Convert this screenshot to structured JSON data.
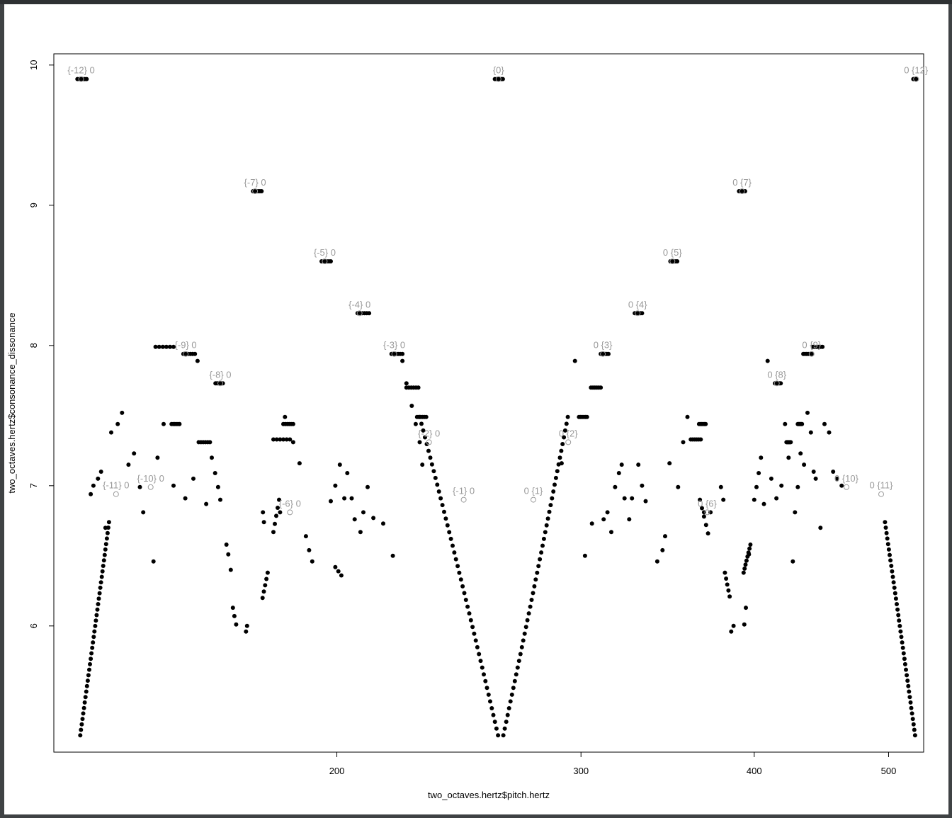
{
  "chart_data": {
    "type": "scatter",
    "xlabel": "two_octaves.hertz$pitch.hertz",
    "ylabel": "two_octaves.hertz$consonance_dissonance",
    "x_scale": "log",
    "xlim": [
      125,
      530
    ],
    "ylim": [
      5.1,
      10.08
    ],
    "x_ticks": [
      200,
      300,
      400,
      500
    ],
    "x_tick_labels": [
      "200",
      "300",
      "400",
      "500"
    ],
    "y_ticks": [
      6,
      7,
      8,
      9,
      10
    ],
    "y_tick_labels": [
      "6",
      "7",
      "8",
      "9",
      "10"
    ],
    "grid": false,
    "legend": "none",
    "point_color": "#000000",
    "label_color": "#9a9a9a",
    "interval_labels": [
      {
        "text": "{-12} 0",
        "x": 130.8,
        "y": 9.9
      },
      {
        "text": "{-11} 0",
        "x": 138.6,
        "y": 6.94
      },
      {
        "text": "{-10} 0",
        "x": 146.8,
        "y": 6.99
      },
      {
        "text": "{-9} 0",
        "x": 155.6,
        "y": 7.94
      },
      {
        "text": "{-8} 0",
        "x": 164.8,
        "y": 7.73
      },
      {
        "text": "{-7} 0",
        "x": 174.6,
        "y": 9.1
      },
      {
        "text": "{-6} 0",
        "x": 185.0,
        "y": 6.81
      },
      {
        "text": "{-5} 0",
        "x": 196.0,
        "y": 8.6
      },
      {
        "text": "{-4} 0",
        "x": 207.7,
        "y": 8.23
      },
      {
        "text": "{-3} 0",
        "x": 220.0,
        "y": 7.94
      },
      {
        "text": "{-2} 0",
        "x": 233.1,
        "y": 7.31
      },
      {
        "text": "{-1} 0",
        "x": 246.9,
        "y": 6.9
      },
      {
        "text": "{0}",
        "x": 261.6,
        "y": 9.9
      },
      {
        "text": "0 {1}",
        "x": 277.2,
        "y": 6.9
      },
      {
        "text": "0 {2}",
        "x": 293.7,
        "y": 7.31
      },
      {
        "text": "0 {3}",
        "x": 311.1,
        "y": 7.94
      },
      {
        "text": "0 {4}",
        "x": 329.6,
        "y": 8.23
      },
      {
        "text": "0 {5}",
        "x": 349.2,
        "y": 8.6
      },
      {
        "text": "0 {6}",
        "x": 370.0,
        "y": 6.81
      },
      {
        "text": "0 {7}",
        "x": 392.0,
        "y": 9.1
      },
      {
        "text": "0 {8}",
        "x": 415.3,
        "y": 7.73
      },
      {
        "text": "0 {9}",
        "x": 440.0,
        "y": 7.94
      },
      {
        "text": "0 {10}",
        "x": 466.2,
        "y": 6.99
      },
      {
        "text": "0 {11}",
        "x": 493.9,
        "y": 6.94
      },
      {
        "text": "0 {12}",
        "x": 523.3,
        "y": 9.9
      }
    ],
    "plateaus": [
      {
        "x0": 130.0,
        "x1": 132.0,
        "y": 9.9
      },
      {
        "x0": 174.0,
        "x1": 176.5,
        "y": 9.1
      },
      {
        "x0": 195.0,
        "x1": 198.0,
        "y": 8.6
      },
      {
        "x0": 207.0,
        "x1": 211.0,
        "y": 8.23
      },
      {
        "x0": 219.0,
        "x1": 223.0,
        "y": 7.94
      },
      {
        "x0": 224.5,
        "x1": 229.0,
        "y": 7.7
      },
      {
        "x0": 228.5,
        "x1": 232.0,
        "y": 7.49
      },
      {
        "x0": 260.0,
        "x1": 263.5,
        "y": 9.9
      },
      {
        "x0": 305.0,
        "x1": 310.0,
        "y": 7.7
      },
      {
        "x0": 299.0,
        "x1": 303.0,
        "y": 7.49
      },
      {
        "x0": 310.0,
        "x1": 314.0,
        "y": 7.94
      },
      {
        "x0": 328.0,
        "x1": 332.0,
        "y": 8.23
      },
      {
        "x0": 348.0,
        "x1": 352.0,
        "y": 8.6
      },
      {
        "x0": 390.0,
        "x1": 394.0,
        "y": 9.1
      },
      {
        "x0": 441.0,
        "x1": 448.0,
        "y": 7.99
      },
      {
        "x0": 148.0,
        "x1": 152.5,
        "y": 7.99
      },
      {
        "x0": 155.0,
        "x1": 158.0,
        "y": 7.94
      },
      {
        "x0": 163.5,
        "x1": 165.5,
        "y": 7.73
      },
      {
        "x0": 414.0,
        "x1": 418.0,
        "y": 7.73
      },
      {
        "x0": 434.0,
        "x1": 440.0,
        "y": 7.94
      },
      {
        "x0": 521.0,
        "x1": 524.0,
        "y": 9.9
      },
      {
        "x0": 180.0,
        "x1": 185.0,
        "y": 7.33
      },
      {
        "x0": 183.0,
        "x1": 186.0,
        "y": 7.44
      },
      {
        "x0": 360.0,
        "x1": 366.0,
        "y": 7.33
      },
      {
        "x0": 365.0,
        "x1": 369.0,
        "y": 7.44
      },
      {
        "x0": 159.0,
        "x1": 162.0,
        "y": 7.31
      },
      {
        "x0": 422.0,
        "x1": 425.0,
        "y": 7.31
      },
      {
        "x0": 152.0,
        "x1": 154.0,
        "y": 7.44
      },
      {
        "x0": 430.0,
        "x1": 433.0,
        "y": 7.44
      }
    ],
    "curves": [
      {
        "x0": 130.6,
        "x1": 137.0,
        "y0": 5.22,
        "y1": 6.74,
        "n": 40
      },
      {
        "x0": 176.8,
        "x1": 178.3,
        "y0": 6.2,
        "y1": 6.38,
        "n": 5
      },
      {
        "x0": 180.0,
        "x1": 181.7,
        "y0": 6.67,
        "y1": 6.9,
        "n": 5
      },
      {
        "x0": 199.5,
        "x1": 201.5,
        "y0": 6.42,
        "y1": 6.36,
        "n": 3
      },
      {
        "x0": 229.5,
        "x1": 261.4,
        "y0": 7.49,
        "y1": 5.22,
        "n": 48
      },
      {
        "x0": 263.7,
        "x1": 293.5,
        "y0": 5.22,
        "y1": 7.49,
        "n": 48
      },
      {
        "x0": 365.5,
        "x1": 370.5,
        "y0": 6.9,
        "y1": 6.66,
        "n": 5
      },
      {
        "x0": 381.0,
        "x1": 384.0,
        "y0": 6.38,
        "y1": 6.21,
        "n": 5
      },
      {
        "x0": 393.0,
        "x1": 397.5,
        "y0": 6.38,
        "y1": 6.58,
        "n": 8
      },
      {
        "x0": 497.0,
        "x1": 522.5,
        "y0": 6.74,
        "y1": 5.22,
        "n": 40
      }
    ],
    "points": [
      [
        132.9,
        6.94
      ],
      [
        136.2,
        6.7
      ],
      [
        133.5,
        7.0
      ],
      [
        134.5,
        7.05
      ],
      [
        135.2,
        7.1
      ],
      [
        137.5,
        7.38
      ],
      [
        139.0,
        7.44
      ],
      [
        140.0,
        7.52
      ],
      [
        141.5,
        7.15
      ],
      [
        142.8,
        7.23
      ],
      [
        144.2,
        6.99
      ],
      [
        145.0,
        6.81
      ],
      [
        147.5,
        6.46
      ],
      [
        148.5,
        7.2
      ],
      [
        150.0,
        7.44
      ],
      [
        152.5,
        7.0
      ],
      [
        155.5,
        6.91
      ],
      [
        157.6,
        7.05
      ],
      [
        158.7,
        7.89
      ],
      [
        161.0,
        6.87
      ],
      [
        162.5,
        7.2
      ],
      [
        163.4,
        7.09
      ],
      [
        164.2,
        6.99
      ],
      [
        164.8,
        6.9
      ],
      [
        166.5,
        6.58
      ],
      [
        167.0,
        6.51
      ],
      [
        167.7,
        6.4
      ],
      [
        168.3,
        6.13
      ],
      [
        168.7,
        6.07
      ],
      [
        169.2,
        6.01
      ],
      [
        172.0,
        5.96
      ],
      [
        172.3,
        6.0
      ],
      [
        176.9,
        6.81
      ],
      [
        177.2,
        6.74
      ],
      [
        182.0,
        6.81
      ],
      [
        183.5,
        7.49
      ],
      [
        186.0,
        7.31
      ],
      [
        188.0,
        7.16
      ],
      [
        190.0,
        6.64
      ],
      [
        191.0,
        6.54
      ],
      [
        192.0,
        6.46
      ],
      [
        198.0,
        6.89
      ],
      [
        199.5,
        7.0
      ],
      [
        201.0,
        7.15
      ],
      [
        202.5,
        6.91
      ],
      [
        203.5,
        7.09
      ],
      [
        205.0,
        6.91
      ],
      [
        206.0,
        6.76
      ],
      [
        208.0,
        6.67
      ],
      [
        209.0,
        6.81
      ],
      [
        210.5,
        6.99
      ],
      [
        212.5,
        6.77
      ],
      [
        216.0,
        6.73
      ],
      [
        219.5,
        6.5
      ],
      [
        223.0,
        7.89
      ],
      [
        224.5,
        7.73
      ],
      [
        226.5,
        7.57
      ],
      [
        228.0,
        7.44
      ],
      [
        229.5,
        7.31
      ],
      [
        230.5,
        7.15
      ],
      [
        290.5,
        7.16
      ],
      [
        297.0,
        7.89
      ],
      [
        302.0,
        6.5
      ],
      [
        305.5,
        6.73
      ],
      [
        311.5,
        6.76
      ],
      [
        313.5,
        6.81
      ],
      [
        315.5,
        6.67
      ],
      [
        317.5,
        6.99
      ],
      [
        319.5,
        7.09
      ],
      [
        321.0,
        7.15
      ],
      [
        322.5,
        6.91
      ],
      [
        325.0,
        6.76
      ],
      [
        326.5,
        6.91
      ],
      [
        330.0,
        7.15
      ],
      [
        332.0,
        7.0
      ],
      [
        334.0,
        6.89
      ],
      [
        340.5,
        6.46
      ],
      [
        343.5,
        6.54
      ],
      [
        345.0,
        6.64
      ],
      [
        347.5,
        7.16
      ],
      [
        352.5,
        6.99
      ],
      [
        355.5,
        7.31
      ],
      [
        358.0,
        7.49
      ],
      [
        368.0,
        6.81
      ],
      [
        372.0,
        6.81
      ],
      [
        378.5,
        6.99
      ],
      [
        380.0,
        6.9
      ],
      [
        385.0,
        5.96
      ],
      [
        386.5,
        6.0
      ],
      [
        393.5,
        6.01
      ],
      [
        394.5,
        6.13
      ],
      [
        396.5,
        6.51
      ],
      [
        400.0,
        6.9
      ],
      [
        401.5,
        6.99
      ],
      [
        403.0,
        7.09
      ],
      [
        404.5,
        7.2
      ],
      [
        406.5,
        6.87
      ],
      [
        409.0,
        7.89
      ],
      [
        411.5,
        7.05
      ],
      [
        415.0,
        6.91
      ],
      [
        418.5,
        7.0
      ],
      [
        421.0,
        7.44
      ],
      [
        423.5,
        7.2
      ],
      [
        426.5,
        6.46
      ],
      [
        428.0,
        6.81
      ],
      [
        430.0,
        6.99
      ],
      [
        432.0,
        7.23
      ],
      [
        434.5,
        7.15
      ],
      [
        437.0,
        7.52
      ],
      [
        439.5,
        7.38
      ],
      [
        441.5,
        7.1
      ],
      [
        443.0,
        7.05
      ],
      [
        446.5,
        6.7
      ],
      [
        449.5,
        7.44
      ],
      [
        453.0,
        7.38
      ],
      [
        456.0,
        7.1
      ],
      [
        459.0,
        7.05
      ],
      [
        462.5,
        7.0
      ]
    ]
  }
}
